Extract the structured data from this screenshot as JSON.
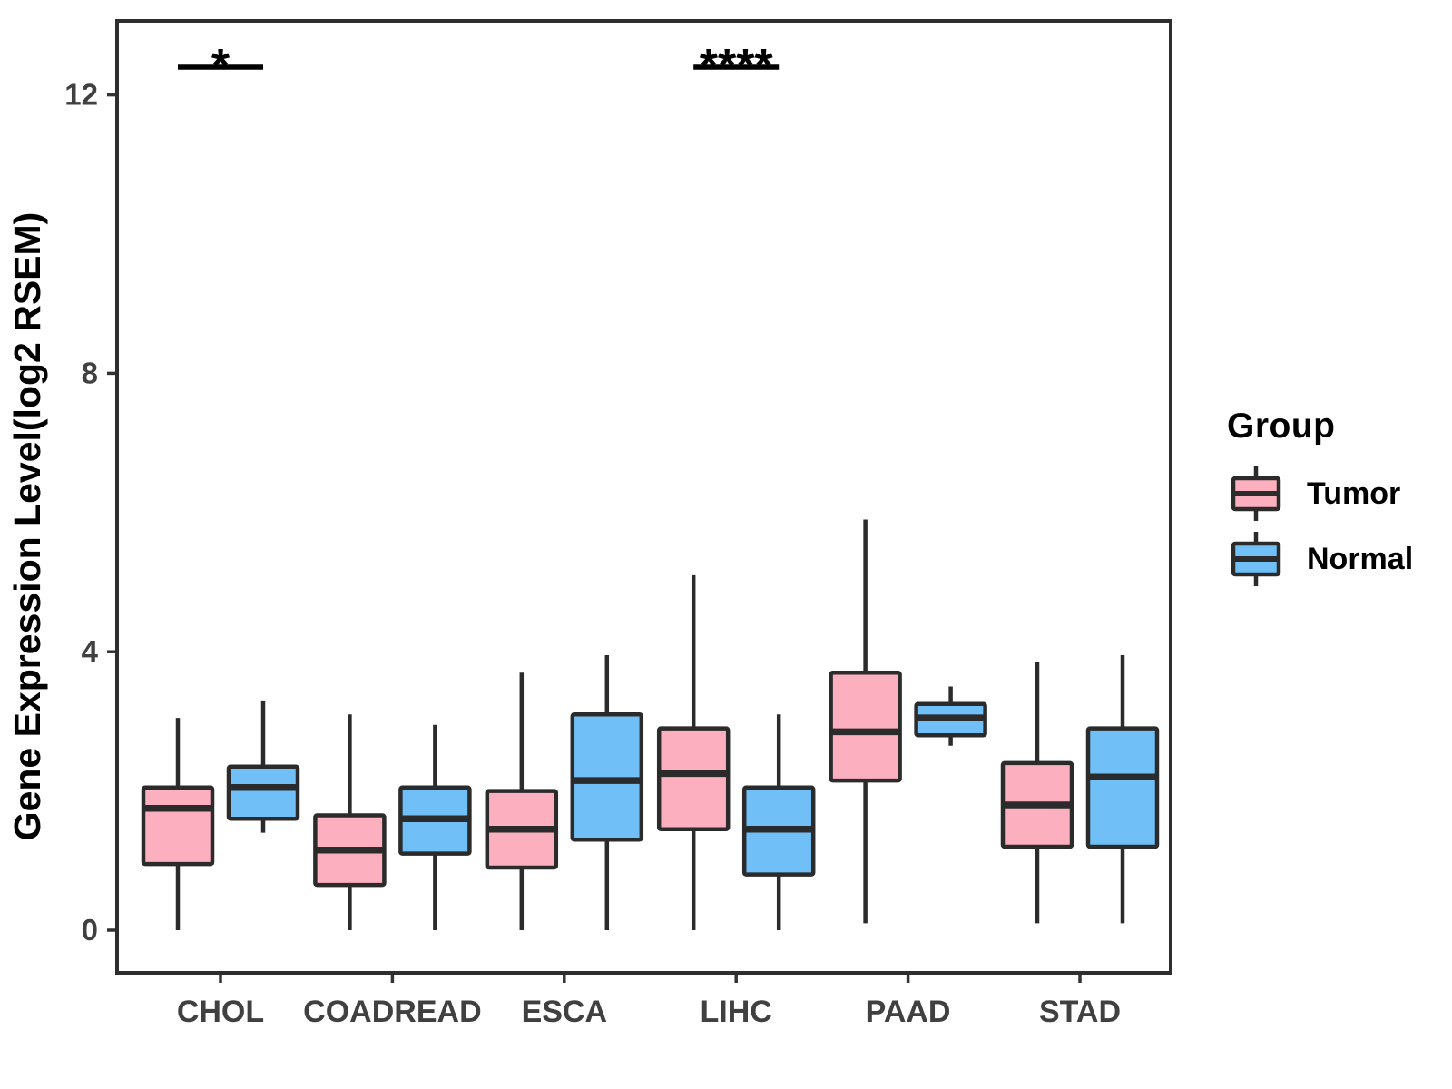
{
  "chart_data": {
    "type": "boxplot",
    "title": "",
    "xlabel": "",
    "ylabel": "Gene Expression Level(log2 RSEM)",
    "categories": [
      "CHOL",
      "COADREAD",
      "ESCA",
      "LIHC",
      "PAAD",
      "STAD"
    ],
    "yticks": [
      0,
      4,
      8,
      12
    ],
    "ylim": [
      -0.6,
      13.1
    ],
    "grid": false,
    "legend_title": "Group",
    "legend_position": "right",
    "series": [
      {
        "name": "Tumor",
        "fill": "#FCAFBE",
        "stroke": "#2B2B2B",
        "boxes": [
          {
            "category": "CHOL",
            "whisker_low": 0,
            "q1": 0.95,
            "median": 1.75,
            "q3": 2.05,
            "whisker_high": 3.05
          },
          {
            "category": "COADREAD",
            "whisker_low": 0,
            "q1": 0.65,
            "median": 1.15,
            "q3": 1.65,
            "whisker_high": 3.1
          },
          {
            "category": "ESCA",
            "whisker_low": 0,
            "q1": 0.9,
            "median": 1.45,
            "q3": 2.0,
            "whisker_high": 3.7
          },
          {
            "category": "LIHC",
            "whisker_low": 0,
            "q1": 1.45,
            "median": 2.25,
            "q3": 2.9,
            "whisker_high": 5.1
          },
          {
            "category": "PAAD",
            "whisker_low": 0.1,
            "q1": 2.15,
            "median": 2.85,
            "q3": 3.7,
            "whisker_high": 5.9
          },
          {
            "category": "STAD",
            "whisker_low": 0.1,
            "q1": 1.2,
            "median": 1.8,
            "q3": 2.4,
            "whisker_high": 3.85
          }
        ]
      },
      {
        "name": "Normal",
        "fill": "#71BFF7",
        "stroke": "#2B2B2B",
        "boxes": [
          {
            "category": "CHOL",
            "whisker_low": 1.4,
            "q1": 1.6,
            "median": 2.05,
            "q3": 2.35,
            "whisker_high": 3.3
          },
          {
            "category": "COADREAD",
            "whisker_low": 0,
            "q1": 1.1,
            "median": 1.6,
            "q3": 2.05,
            "whisker_high": 2.95
          },
          {
            "category": "ESCA",
            "whisker_low": 0,
            "q1": 1.3,
            "median": 2.15,
            "q3": 3.1,
            "whisker_high": 3.95
          },
          {
            "category": "LIHC",
            "whisker_low": 0,
            "q1": 0.8,
            "median": 1.45,
            "q3": 2.05,
            "whisker_high": 3.1
          },
          {
            "category": "PAAD",
            "whisker_low": 2.65,
            "q1": 2.8,
            "median": 3.05,
            "q3": 3.25,
            "whisker_high": 3.5
          },
          {
            "category": "STAD",
            "whisker_low": 0.1,
            "q1": 1.2,
            "median": 2.2,
            "q3": 2.9,
            "whisker_high": 3.95
          }
        ]
      }
    ],
    "significance": [
      {
        "category": "CHOL",
        "label": "*"
      },
      {
        "category": "LIHC",
        "label": "****"
      }
    ]
  },
  "colors": {
    "panel_border": "#2E2E2E",
    "axis_tick": "#333333",
    "axis_text": "#404040",
    "axis_title": "#000000",
    "significance": "#000000"
  }
}
